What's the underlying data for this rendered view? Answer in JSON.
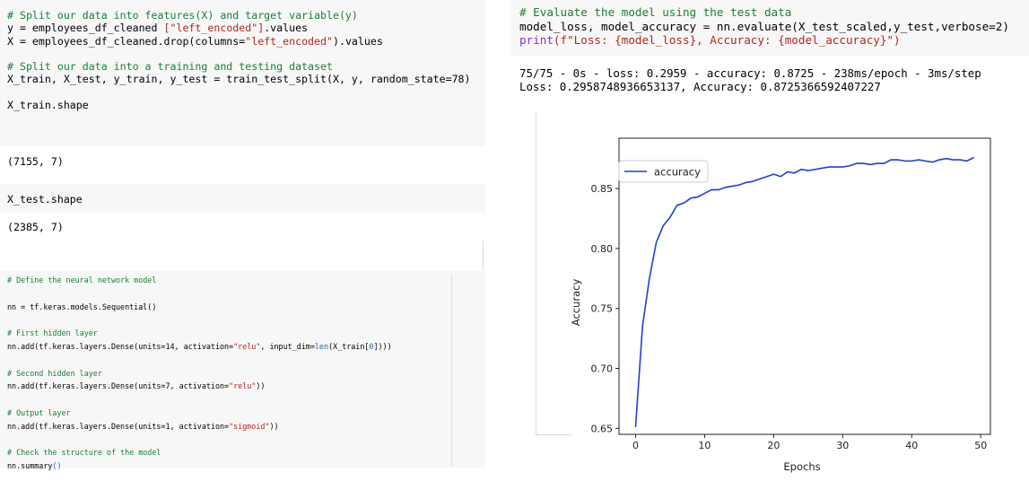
{
  "left": {
    "cell1": {
      "lines": [
        [
          {
            "t": "# Split our data into features(X) and target variable(y)",
            "c": "c"
          }
        ],
        [
          {
            "t": "y = employees_df_cleaned ",
            "c": "plain"
          },
          {
            "t": "[\"left_encoded\"]",
            "c": "s"
          },
          {
            "t": ".values",
            "c": "plain"
          }
        ],
        [
          {
            "t": "X = employees_df_cleaned.drop(columns=",
            "c": "plain"
          },
          {
            "t": "\"left_encoded\"",
            "c": "s"
          },
          {
            "t": ").values",
            "c": "plain"
          }
        ],
        [
          {
            "t": "",
            "c": "plain"
          }
        ],
        [
          {
            "t": "# Split our data into a training and testing dataset",
            "c": "c"
          }
        ],
        [
          {
            "t": "X_train, X_test, y_train, y_test = train_test_split(X, y, random_state=78)",
            "c": "plain"
          }
        ],
        [
          {
            "t": "",
            "c": "plain"
          }
        ],
        [
          {
            "t": "X_train.shape",
            "c": "plain"
          }
        ]
      ]
    },
    "out1": "(7155, 7)",
    "cell2": "X_test.shape",
    "out2": "(2385, 7)",
    "cell3": {
      "lines": [
        [
          {
            "t": "# Define the neural network model",
            "c": "c"
          }
        ],
        [
          {
            "t": "",
            "c": "plain"
          }
        ],
        [
          {
            "t": "nn = tf.keras.models.Sequential()",
            "c": "plain"
          }
        ],
        [
          {
            "t": "",
            "c": "plain"
          }
        ],
        [
          {
            "t": "# First hidden layer",
            "c": "c"
          }
        ],
        [
          {
            "t": "nn.add(tf.keras.layers.Dense(units=14, activation=",
            "c": "plain"
          },
          {
            "t": "\"relu\"",
            "c": "s"
          },
          {
            "t": ", input_dim=",
            "c": "plain"
          },
          {
            "t": "len",
            "c": "bi"
          },
          {
            "t": "(X_train[",
            "c": "plain"
          },
          {
            "t": "0",
            "c": "bi"
          },
          {
            "t": "])))",
            "c": "plain"
          }
        ],
        [
          {
            "t": "",
            "c": "plain"
          }
        ],
        [
          {
            "t": "# Second hidden layer",
            "c": "c"
          }
        ],
        [
          {
            "t": "nn.add(tf.keras.layers.Dense(units=7, activation=",
            "c": "plain"
          },
          {
            "t": "\"relu\"",
            "c": "s"
          },
          {
            "t": "))",
            "c": "plain"
          }
        ],
        [
          {
            "t": "",
            "c": "plain"
          }
        ],
        [
          {
            "t": "# Output layer",
            "c": "c"
          }
        ],
        [
          {
            "t": "nn.add(tf.keras.layers.Dense(units=1, activation=",
            "c": "plain"
          },
          {
            "t": "\"sigmoid\"",
            "c": "s"
          },
          {
            "t": "))",
            "c": "plain"
          }
        ],
        [
          {
            "t": "",
            "c": "plain"
          }
        ],
        [
          {
            "t": "# Check the structure of the model",
            "c": "c"
          }
        ],
        [
          {
            "t": "nn.summary",
            "c": "plain"
          },
          {
            "t": "()",
            "c": "bi"
          }
        ]
      ]
    }
  },
  "right": {
    "cell1": {
      "lines": [
        [
          {
            "t": "# Evaluate the model using the test data",
            "c": "c"
          }
        ],
        [
          {
            "t": "model_loss, model_accuracy = nn.evaluate(X_test_scaled,y_test,verbose=2)",
            "c": "plain"
          }
        ],
        [
          {
            "t": "print",
            "c": "k"
          },
          {
            "t": "(f\"Loss: {model_loss}, Accuracy: {model_accuracy}\")",
            "c": "s"
          }
        ]
      ]
    },
    "output_lines": [
      "75/75 - 0s - loss: 0.2959 - accuracy: 0.8725 - 238ms/epoch - 3ms/step",
      "Loss: 0.2958748936653137, Accuracy: 0.8725366592407227"
    ]
  },
  "chart_data": {
    "type": "line",
    "xlabel": "Epochs",
    "ylabel": "Accuracy",
    "xlim": [
      -2.4,
      51.4
    ],
    "ylim": [
      0.645,
      0.892
    ],
    "xticks": [
      0,
      10,
      20,
      30,
      40,
      50
    ],
    "yticks": [
      0.65,
      0.7,
      0.75,
      0.8,
      0.85
    ],
    "ytick_labels": [
      "0.65",
      "0.70",
      "0.75",
      "0.80",
      "0.85"
    ],
    "legend_position": "top-left",
    "grid": false,
    "series": [
      {
        "name": "accuracy",
        "color": "#1f3ed8",
        "x": [
          0,
          1,
          2,
          3,
          4,
          5,
          6,
          7,
          8,
          9,
          10,
          11,
          12,
          13,
          14,
          15,
          16,
          17,
          18,
          19,
          20,
          21,
          22,
          23,
          24,
          25,
          26,
          27,
          28,
          29,
          30,
          31,
          32,
          33,
          34,
          35,
          36,
          37,
          38,
          39,
          40,
          41,
          42,
          43,
          44,
          45,
          46,
          47,
          48,
          49
        ],
        "values": [
          0.651,
          0.735,
          0.775,
          0.805,
          0.819,
          0.826,
          0.836,
          0.838,
          0.842,
          0.843,
          0.846,
          0.849,
          0.849,
          0.851,
          0.852,
          0.853,
          0.855,
          0.856,
          0.858,
          0.86,
          0.862,
          0.86,
          0.864,
          0.863,
          0.866,
          0.865,
          0.866,
          0.867,
          0.868,
          0.868,
          0.868,
          0.869,
          0.871,
          0.871,
          0.87,
          0.871,
          0.871,
          0.874,
          0.874,
          0.873,
          0.873,
          0.874,
          0.873,
          0.872,
          0.874,
          0.875,
          0.874,
          0.874,
          0.873,
          0.876
        ]
      }
    ]
  }
}
